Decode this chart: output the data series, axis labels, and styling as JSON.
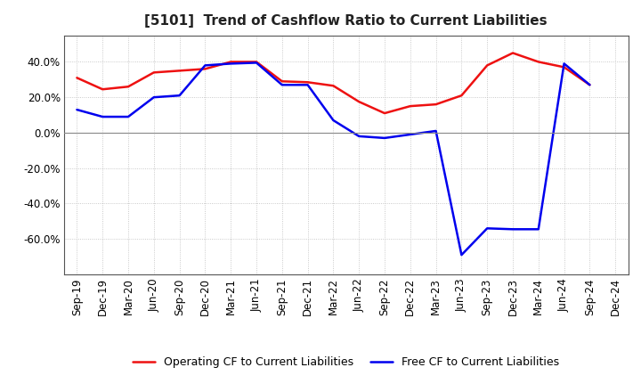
{
  "title": "[5101]  Trend of Cashflow Ratio to Current Liabilities",
  "x_labels": [
    "Sep-19",
    "Dec-19",
    "Mar-20",
    "Jun-20",
    "Sep-20",
    "Dec-20",
    "Mar-21",
    "Jun-21",
    "Sep-21",
    "Dec-21",
    "Mar-22",
    "Jun-22",
    "Sep-22",
    "Dec-22",
    "Mar-23",
    "Jun-23",
    "Sep-23",
    "Dec-23",
    "Mar-24",
    "Jun-24",
    "Sep-24",
    "Dec-24"
  ],
  "operating_cf": [
    0.31,
    0.245,
    0.26,
    0.34,
    0.35,
    0.36,
    0.4,
    0.4,
    0.29,
    0.285,
    0.265,
    0.175,
    0.11,
    0.15,
    0.16,
    0.21,
    0.38,
    0.45,
    0.4,
    0.37,
    0.27,
    null
  ],
  "free_cf": [
    0.13,
    0.09,
    0.09,
    0.2,
    0.21,
    0.38,
    0.39,
    0.395,
    0.27,
    0.27,
    0.07,
    -0.02,
    -0.03,
    -0.01,
    0.01,
    -0.69,
    -0.54,
    -0.545,
    -0.545,
    0.39,
    0.27,
    null
  ],
  "ylim": [
    -0.8,
    0.55
  ],
  "yticks": [
    -0.6,
    -0.4,
    -0.2,
    0.0,
    0.2,
    0.4
  ],
  "operating_color": "#EE1111",
  "free_color": "#0000EE",
  "background_color": "#FFFFFF",
  "plot_bg_color": "#FFFFFF",
  "grid_color": "#BBBBBB",
  "legend_op": "Operating CF to Current Liabilities",
  "legend_free": "Free CF to Current Liabilities",
  "title_fontsize": 11,
  "tick_fontsize": 8.5,
  "legend_fontsize": 9
}
